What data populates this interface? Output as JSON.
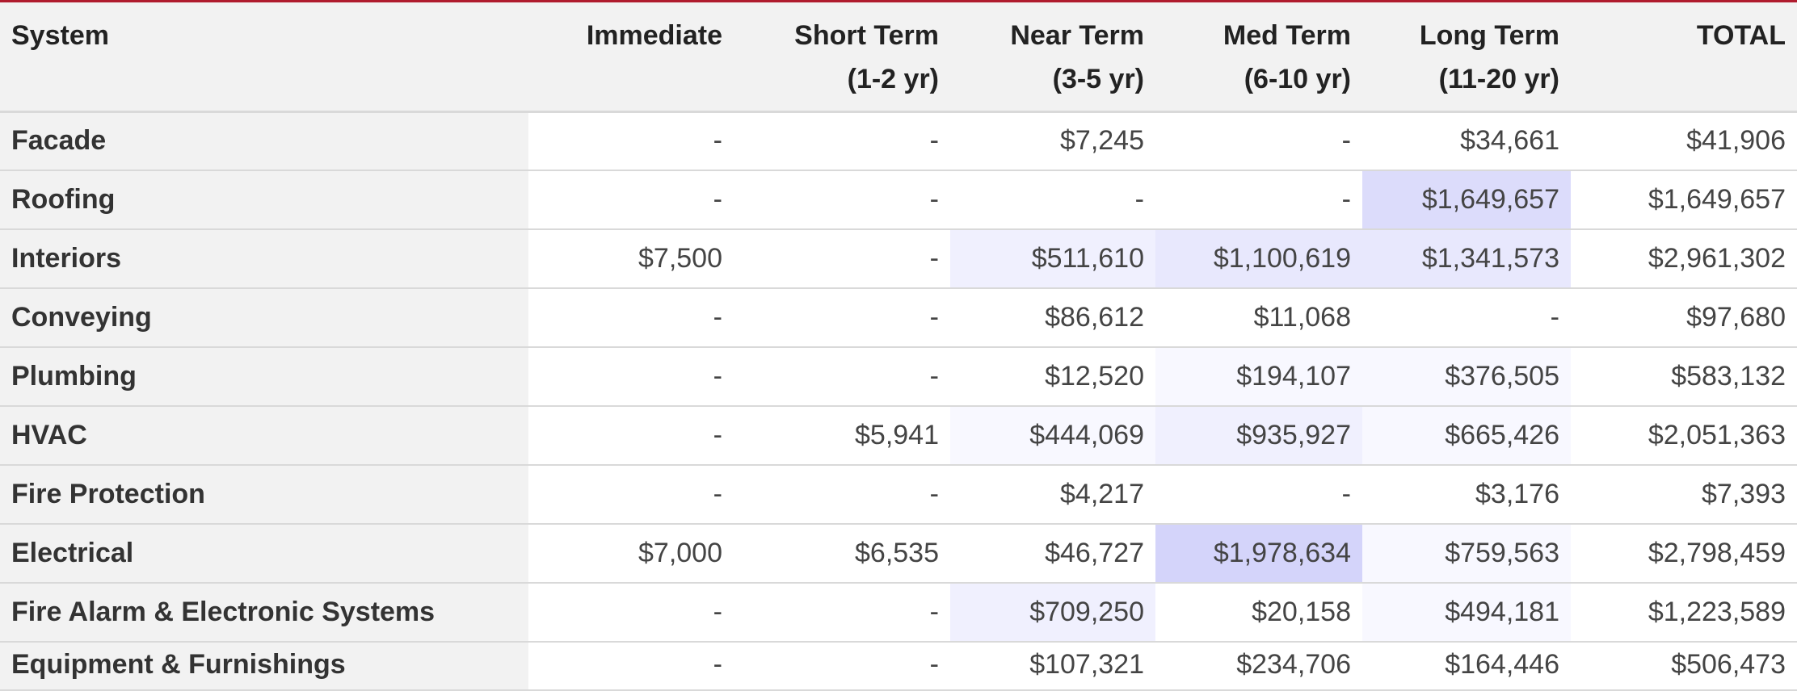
{
  "table": {
    "headers": [
      {
        "line1": "System",
        "line2": ""
      },
      {
        "line1": "Immediate",
        "line2": ""
      },
      {
        "line1": "Short Term",
        "line2": "(1-2 yr)"
      },
      {
        "line1": "Near Term",
        "line2": "(3-5 yr)"
      },
      {
        "line1": "Med Term",
        "line2": "(6-10 yr)"
      },
      {
        "line1": "Long Term",
        "line2": "(11-20 yr)"
      },
      {
        "line1": "TOTAL",
        "line2": ""
      }
    ],
    "rows": [
      {
        "system": "Facade",
        "values": [
          "-",
          "-",
          "$7,245",
          "-",
          "$34,661",
          "$41,906"
        ]
      },
      {
        "system": "Roofing",
        "values": [
          "-",
          "-",
          "-",
          "-",
          "$1,649,657",
          "$1,649,657"
        ]
      },
      {
        "system": "Interiors",
        "values": [
          "$7,500",
          "-",
          "$511,610",
          "$1,100,619",
          "$1,341,573",
          "$2,961,302"
        ]
      },
      {
        "system": "Conveying",
        "values": [
          "-",
          "-",
          "$86,612",
          "$11,068",
          "-",
          "$97,680"
        ]
      },
      {
        "system": "Plumbing",
        "values": [
          "-",
          "-",
          "$12,520",
          "$194,107",
          "$376,505",
          "$583,132"
        ]
      },
      {
        "system": "HVAC",
        "values": [
          "-",
          "$5,941",
          "$444,069",
          "$935,927",
          "$665,426",
          "$2,051,363"
        ]
      },
      {
        "system": "Fire Protection",
        "values": [
          "-",
          "-",
          "$4,217",
          "-",
          "$3,176",
          "$7,393"
        ]
      },
      {
        "system": "Electrical",
        "values": [
          "$7,000",
          "$6,535",
          "$46,727",
          "$1,978,634",
          "$759,563",
          "$2,798,459"
        ]
      },
      {
        "system": "Fire Alarm & Electronic Systems",
        "values": [
          "-",
          "-",
          "$709,250",
          "$20,158",
          "$494,181",
          "$1,223,589"
        ]
      },
      {
        "system": "Equipment & Furnishings",
        "values": [
          "-",
          "-",
          "$107,321",
          "$234,706",
          "$164,446",
          "$506,473"
        ]
      }
    ],
    "heat_colors": {
      "none": "#ffffff",
      "faint": "#f8f8ff",
      "light": "#f0f0fe",
      "mid": "#e8e8fd",
      "strong": "#dcdcfb",
      "max": "#d4d4fa"
    },
    "row_heat": [
      [
        "none",
        "none",
        "none",
        "none",
        "none",
        "none"
      ],
      [
        "none",
        "none",
        "none",
        "none",
        "strong",
        "none"
      ],
      [
        "none",
        "none",
        "light",
        "mid",
        "mid",
        "none"
      ],
      [
        "none",
        "none",
        "none",
        "none",
        "none",
        "none"
      ],
      [
        "none",
        "none",
        "none",
        "faint",
        "faint",
        "none"
      ],
      [
        "none",
        "none",
        "faint",
        "light",
        "faint",
        "none"
      ],
      [
        "none",
        "none",
        "none",
        "none",
        "none",
        "none"
      ],
      [
        "none",
        "none",
        "none",
        "max",
        "faint",
        "none"
      ],
      [
        "none",
        "none",
        "light",
        "none",
        "faint",
        "none"
      ],
      [
        "none",
        "none",
        "none",
        "none",
        "none",
        "none"
      ]
    ]
  }
}
